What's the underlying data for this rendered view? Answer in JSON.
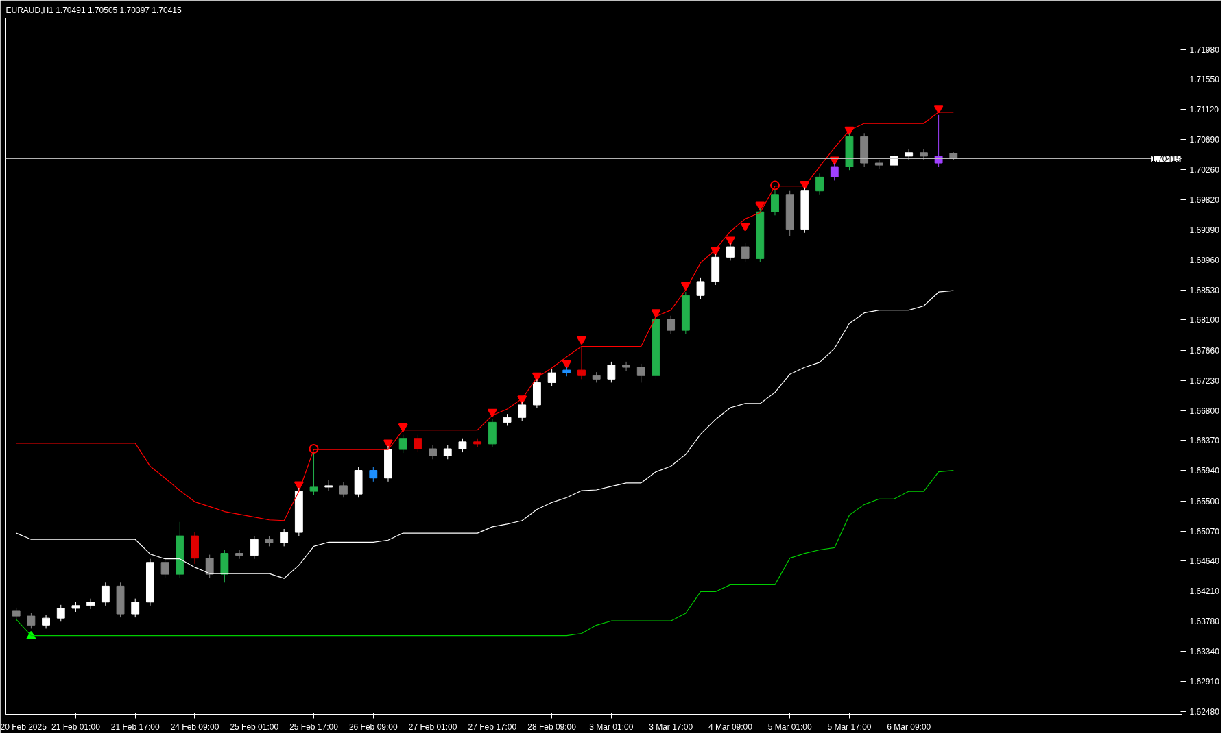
{
  "chart_data": {
    "type": "candlestick",
    "title": "EURAUD,H1  1.70491 1.70505 1.70397 1.70415",
    "categories": [
      "20 Feb 2025",
      null,
      null,
      null,
      "21 Feb 01:00",
      null,
      null,
      null,
      "21 Feb 17:00",
      null,
      null,
      null,
      "24 Feb 09:00",
      null,
      null,
      null,
      "25 Feb 01:00",
      null,
      null,
      null,
      "25 Feb 17:00",
      null,
      null,
      null,
      "26 Feb 09:00",
      null,
      null,
      null,
      "27 Feb 01:00",
      null,
      null,
      null,
      "27 Feb 17:00",
      null,
      null,
      null,
      "28 Feb 09:00",
      null,
      null,
      null,
      "3 Mar 01:00",
      null,
      null,
      null,
      "3 Mar 17:00",
      null,
      null,
      null,
      "4 Mar 09:00",
      null,
      null,
      null,
      "5 Mar 01:00",
      null,
      null,
      null,
      "5 Mar 17:00",
      null,
      null,
      null,
      "6 Mar 09:00",
      null,
      null,
      null
    ],
    "ohlc": [
      [
        1.6392,
        1.6397,
        1.638,
        1.6385
      ],
      [
        1.6385,
        1.639,
        1.6367,
        1.6372
      ],
      [
        1.6372,
        1.6387,
        1.6367,
        1.6382
      ],
      [
        1.6382,
        1.6401,
        1.6377,
        1.6396
      ],
      [
        1.6396,
        1.6405,
        1.6391,
        1.64
      ],
      [
        1.64,
        1.641,
        1.6395,
        1.6405
      ],
      [
        1.6405,
        1.6433,
        1.64,
        1.6428
      ],
      [
        1.6428,
        1.6433,
        1.6383,
        1.6388
      ],
      [
        1.6388,
        1.641,
        1.6383,
        1.6405
      ],
      [
        1.6405,
        1.6467,
        1.64,
        1.6462
      ],
      [
        1.6462,
        1.6467,
        1.644,
        1.6445
      ],
      [
        1.6445,
        1.652,
        1.644,
        1.65
      ],
      [
        1.65,
        1.6505,
        1.646,
        1.6468
      ],
      [
        1.6468,
        1.6473,
        1.644,
        1.6445
      ],
      [
        1.6445,
        1.648,
        1.6433,
        1.6475
      ],
      [
        1.6475,
        1.648,
        1.6467,
        1.6472
      ],
      [
        1.6472,
        1.65,
        1.6467,
        1.6495
      ],
      [
        1.6495,
        1.65,
        1.6485,
        1.649
      ],
      [
        1.649,
        1.651,
        1.6485,
        1.6505
      ],
      [
        1.6505,
        1.6569,
        1.65,
        1.6564
      ],
      [
        1.6564,
        1.6619,
        1.6559,
        1.657
      ],
      [
        1.657,
        1.658,
        1.6565,
        1.6572
      ],
      [
        1.6572,
        1.6577,
        1.6555,
        1.656
      ],
      [
        1.656,
        1.6599,
        1.6555,
        1.6594
      ],
      [
        1.6594,
        1.6599,
        1.6578,
        1.6583
      ],
      [
        1.6583,
        1.6629,
        1.6578,
        1.6624
      ],
      [
        1.6624,
        1.6645,
        1.6619,
        1.664
      ],
      [
        1.664,
        1.6645,
        1.662,
        1.6625
      ],
      [
        1.6625,
        1.663,
        1.661,
        1.6615
      ],
      [
        1.6615,
        1.663,
        1.661,
        1.6625
      ],
      [
        1.6625,
        1.664,
        1.662,
        1.6635
      ],
      [
        1.6635,
        1.664,
        1.6627,
        1.6632
      ],
      [
        1.6632,
        1.6668,
        1.6627,
        1.6663
      ],
      [
        1.6663,
        1.6675,
        1.6658,
        1.667
      ],
      [
        1.667,
        1.6693,
        1.6665,
        1.6688
      ],
      [
        1.6688,
        1.6725,
        1.6683,
        1.672
      ],
      [
        1.672,
        1.6739,
        1.6715,
        1.6734
      ],
      [
        1.6734,
        1.6743,
        1.6729,
        1.6738
      ],
      [
        1.6738,
        1.6772,
        1.6725,
        1.673
      ],
      [
        1.673,
        1.6735,
        1.672,
        1.6725
      ],
      [
        1.6725,
        1.675,
        1.672,
        1.6745
      ],
      [
        1.6745,
        1.675,
        1.6737,
        1.6742
      ],
      [
        1.6742,
        1.6747,
        1.672,
        1.673
      ],
      [
        1.673,
        1.6816,
        1.6725,
        1.6811
      ],
      [
        1.6811,
        1.6816,
        1.679,
        1.6795
      ],
      [
        1.6795,
        1.685,
        1.679,
        1.6845
      ],
      [
        1.6845,
        1.687,
        1.684,
        1.6865
      ],
      [
        1.6865,
        1.6905,
        1.686,
        1.69
      ],
      [
        1.69,
        1.692,
        1.6895,
        1.6915
      ],
      [
        1.6915,
        1.692,
        1.6893,
        1.6898
      ],
      [
        1.6898,
        1.697,
        1.6893,
        1.6965
      ],
      [
        1.6965,
        1.6997,
        1.696,
        1.699
      ],
      [
        1.699,
        1.6995,
        1.693,
        1.694
      ],
      [
        1.694,
        1.7,
        1.6935,
        1.6995
      ],
      [
        1.6995,
        1.702,
        1.699,
        1.7015
      ],
      [
        1.7015,
        1.7035,
        1.701,
        1.703
      ],
      [
        1.703,
        1.7078,
        1.7025,
        1.7073
      ],
      [
        1.7073,
        1.7078,
        1.703,
        1.7035
      ],
      [
        1.7035,
        1.704,
        1.7027,
        1.7032
      ],
      [
        1.7032,
        1.705,
        1.7027,
        1.7045
      ],
      [
        1.7045,
        1.7055,
        1.704,
        1.705
      ],
      [
        1.705,
        1.7055,
        1.704,
        1.7045
      ],
      [
        1.7045,
        1.7104,
        1.703,
        1.7035
      ],
      [
        1.70491,
        1.70505,
        1.70397,
        1.70415
      ]
    ],
    "colors": [
      "#808080",
      "#808080",
      "#ffffff",
      "#ffffff",
      "#ffffff",
      "#ffffff",
      "#ffffff",
      "#808080",
      "#ffffff",
      "#ffffff",
      "#808080",
      "#22b14c",
      "#e00000",
      "#808080",
      "#22b14c",
      "#808080",
      "#ffffff",
      "#808080",
      "#ffffff",
      "#ffffff",
      "#22b14c",
      "#ffffff",
      "#808080",
      "#ffffff",
      "#1e90ff",
      "#ffffff",
      "#22b14c",
      "#e00000",
      "#808080",
      "#ffffff",
      "#ffffff",
      "#e00000",
      "#22b14c",
      "#ffffff",
      "#ffffff",
      "#ffffff",
      "#ffffff",
      "#1e90ff",
      "#e00000",
      "#808080",
      "#ffffff",
      "#808080",
      "#808080",
      "#22b14c",
      "#808080",
      "#22b14c",
      "#ffffff",
      "#ffffff",
      "#ffffff",
      "#808080",
      "#22b14c",
      "#22b14c",
      "#808080",
      "#ffffff",
      "#22b14c",
      "#a040ff",
      "#22b14c",
      "#808080",
      "#808080",
      "#ffffff",
      "#ffffff",
      "#808080",
      "#a040ff",
      "#808080"
    ],
    "series": [
      {
        "type": "line",
        "color": "#ff0000",
        "values": [
          1.6633,
          1.6633,
          1.6633,
          1.6633,
          1.6633,
          1.6633,
          1.6633,
          1.6633,
          1.6633,
          1.66,
          1.6583,
          1.6565,
          1.6549,
          1.6542,
          1.6535,
          1.6531,
          1.6527,
          1.6523,
          1.6522,
          1.6564,
          1.6624,
          1.6624,
          1.6624,
          1.6624,
          1.6624,
          1.6624,
          1.6652,
          1.6652,
          1.6652,
          1.6652,
          1.6652,
          1.6652,
          1.6673,
          1.6682,
          1.6697,
          1.6727,
          1.6741,
          1.6757,
          1.6772,
          1.6772,
          1.6772,
          1.6772,
          1.6772,
          1.6815,
          1.6824,
          1.6853,
          1.6892,
          1.6911,
          1.6937,
          1.6955,
          1.6964,
          1.7002,
          1.7002,
          1.7002,
          1.703,
          1.7057,
          1.7082,
          1.7092,
          1.7092,
          1.7092,
          1.7092,
          1.7092,
          1.7108,
          1.7108
        ]
      },
      {
        "type": "line",
        "color": "#ffffff",
        "values": [
          1.6504,
          1.6495,
          1.6495,
          1.6495,
          1.6495,
          1.6495,
          1.6495,
          1.6495,
          1.6495,
          1.6474,
          1.6467,
          1.6467,
          1.6455,
          1.6446,
          1.6446,
          1.6446,
          1.6446,
          1.6446,
          1.6439,
          1.6458,
          1.6485,
          1.6491,
          1.6491,
          1.6491,
          1.6491,
          1.6494,
          1.6504,
          1.6504,
          1.6504,
          1.6504,
          1.6504,
          1.6504,
          1.6513,
          1.6517,
          1.6522,
          1.6538,
          1.6548,
          1.6555,
          1.6565,
          1.6566,
          1.6571,
          1.6576,
          1.6576,
          1.6592,
          1.66,
          1.6617,
          1.6646,
          1.6667,
          1.6684,
          1.669,
          1.669,
          1.6706,
          1.6732,
          1.6742,
          1.6749,
          1.6769,
          1.6805,
          1.682,
          1.6824,
          1.6824,
          1.6824,
          1.683,
          1.685,
          1.6852
        ]
      },
      {
        "type": "line",
        "color": "#00cc00",
        "values": [
          1.638,
          1.6357,
          1.6357,
          1.6357,
          1.6357,
          1.6357,
          1.6357,
          1.6357,
          1.6357,
          1.6357,
          1.6357,
          1.6357,
          1.6357,
          1.6357,
          1.6357,
          1.6357,
          1.6357,
          1.6357,
          1.6357,
          1.6357,
          1.6357,
          1.6357,
          1.6357,
          1.6357,
          1.6357,
          1.6357,
          1.6357,
          1.6357,
          1.6357,
          1.6357,
          1.6357,
          1.6357,
          1.6357,
          1.6357,
          1.6357,
          1.6357,
          1.6357,
          1.6357,
          1.636,
          1.6372,
          1.6378,
          1.6378,
          1.6378,
          1.6378,
          1.6378,
          1.6389,
          1.642,
          1.642,
          1.643,
          1.643,
          1.643,
          1.643,
          1.6468,
          1.6475,
          1.648,
          1.6483,
          1.653,
          1.6545,
          1.6553,
          1.6553,
          1.6564,
          1.6564,
          1.6592,
          1.6594
        ]
      },
      {
        "type": "scatter",
        "marker": "triangle_down",
        "color": "#ff0000",
        "values": [
          null,
          null,
          null,
          null,
          null,
          null,
          null,
          null,
          null,
          null,
          null,
          null,
          null,
          null,
          null,
          null,
          null,
          null,
          null,
          1.6574,
          null,
          null,
          null,
          null,
          null,
          1.6634,
          1.6657,
          null,
          null,
          null,
          null,
          null,
          1.6678,
          null,
          1.6697,
          1.673,
          null,
          1.6748,
          1.6782,
          null,
          null,
          null,
          null,
          1.6821,
          null,
          1.686,
          null,
          1.691,
          1.6925,
          1.6945,
          1.6975,
          null,
          null,
          1.7005,
          null,
          1.704,
          1.7083,
          null,
          null,
          null,
          null,
          null,
          1.7114,
          null
        ]
      },
      {
        "type": "scatter",
        "marker": "circle",
        "color": "#ff0000",
        "values": [
          null,
          null,
          null,
          null,
          null,
          null,
          null,
          null,
          null,
          null,
          null,
          null,
          null,
          null,
          null,
          null,
          null,
          null,
          null,
          null,
          1.6625,
          null,
          null,
          null,
          null,
          null,
          null,
          null,
          null,
          null,
          null,
          null,
          null,
          null,
          null,
          null,
          null,
          null,
          null,
          null,
          null,
          null,
          null,
          null,
          null,
          null,
          null,
          null,
          null,
          null,
          null,
          1.7003,
          null,
          null,
          null,
          null,
          null,
          null,
          null,
          null,
          null,
          null,
          null,
          null
        ]
      },
      {
        "type": "scatter",
        "marker": "triangle",
        "color": "#00ff00",
        "values": [
          null,
          1.6356,
          null,
          null,
          null,
          null,
          null,
          null,
          null,
          null,
          null,
          null,
          null,
          null,
          null,
          null,
          null,
          null,
          null,
          null,
          null,
          null,
          null,
          null,
          null,
          null,
          null,
          null,
          null,
          null,
          null,
          null,
          null,
          null,
          null,
          null,
          null,
          null,
          null,
          null,
          null,
          null,
          null,
          null,
          null,
          null,
          null,
          null,
          null,
          null,
          null,
          null,
          null,
          null,
          null,
          null,
          null,
          null,
          null,
          null,
          null,
          null,
          null,
          null
        ]
      }
    ],
    "ref_lines": [
      {
        "axis": "y",
        "value": 1.70415,
        "label": "1.70415",
        "color": "#c0c0c0"
      }
    ],
    "ylim": [
      1.6244,
      1.7243
    ],
    "yticks": [
      {
        "value": 1.6248,
        "label": "1.62480"
      },
      {
        "value": 1.6291,
        "label": "1.62910"
      },
      {
        "value": 1.6334,
        "label": "1.63340"
      },
      {
        "value": 1.6378,
        "label": "1.63780"
      },
      {
        "value": 1.6421,
        "label": "1.64210"
      },
      {
        "value": 1.6464,
        "label": "1.64640"
      },
      {
        "value": 1.6507,
        "label": "1.65070"
      },
      {
        "value": 1.655,
        "label": "1.65500"
      },
      {
        "value": 1.6594,
        "label": "1.65940"
      },
      {
        "value": 1.6637,
        "label": "1.66370"
      },
      {
        "value": 1.668,
        "label": "1.66800"
      },
      {
        "value": 1.6723,
        "label": "1.67230"
      },
      {
        "value": 1.6766,
        "label": "1.67660"
      },
      {
        "value": 1.681,
        "label": "1.68100"
      },
      {
        "value": 1.6853,
        "label": "1.68530"
      },
      {
        "value": 1.6896,
        "label": "1.68960"
      },
      {
        "value": 1.6939,
        "label": "1.69390"
      },
      {
        "value": 1.6982,
        "label": "1.69820"
      },
      {
        "value": 1.7026,
        "label": "1.70260"
      },
      {
        "value": 1.7069,
        "label": "1.70690"
      },
      {
        "value": 1.7112,
        "label": "1.71120"
      },
      {
        "value": 1.7155,
        "label": "1.71550"
      },
      {
        "value": 1.7198,
        "label": "1.71980"
      }
    ],
    "grid": false
  }
}
